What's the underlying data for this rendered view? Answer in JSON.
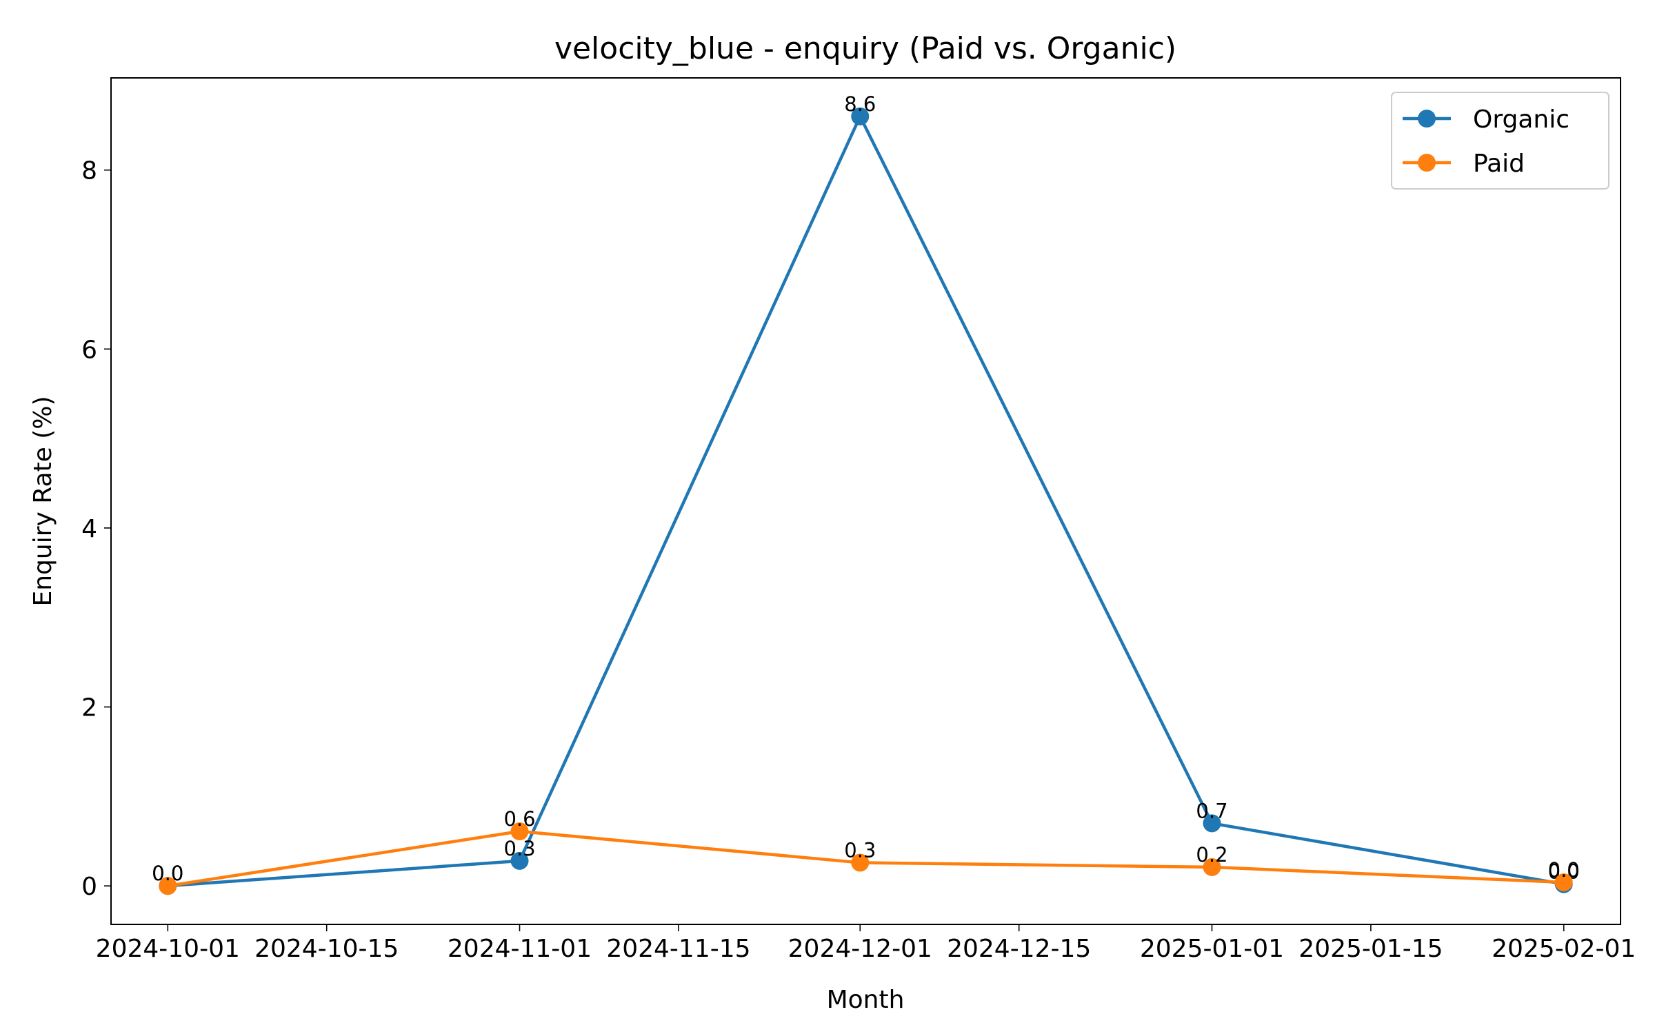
{
  "chart_data": {
    "type": "line",
    "title": "velocity_blue - enquiry (Paid vs. Organic)",
    "xlabel": "Month",
    "ylabel": "Enquiry Rate (%)",
    "x": [
      "2024-10-01",
      "2024-11-01",
      "2024-12-01",
      "2025-01-01",
      "2025-02-01"
    ],
    "x_ticks": [
      "2024-10-01",
      "2024-10-15",
      "2024-11-01",
      "2024-11-15",
      "2024-12-01",
      "2024-12-15",
      "2025-01-01",
      "2025-01-15",
      "2025-02-01"
    ],
    "y_ticks": [
      0,
      2,
      4,
      6,
      8
    ],
    "ylim": [
      -0.43,
      9.03
    ],
    "xlim": [
      "2024-09-26",
      "2025-02-06"
    ],
    "grid": false,
    "legend_position": "top-right",
    "series": [
      {
        "name": "Organic",
        "color": "#1f77b4",
        "values": [
          0.0,
          0.28,
          8.6,
          0.7,
          0.02
        ],
        "labels": [
          "0.0",
          "0.3",
          "8.6",
          "0.7",
          "0.0"
        ]
      },
      {
        "name": "Paid",
        "color": "#ff7f0e",
        "values": [
          0.0,
          0.61,
          0.26,
          0.21,
          0.04
        ],
        "labels": [
          "0.0",
          "0.6",
          "0.3",
          "0.2",
          "0.0"
        ]
      }
    ]
  }
}
